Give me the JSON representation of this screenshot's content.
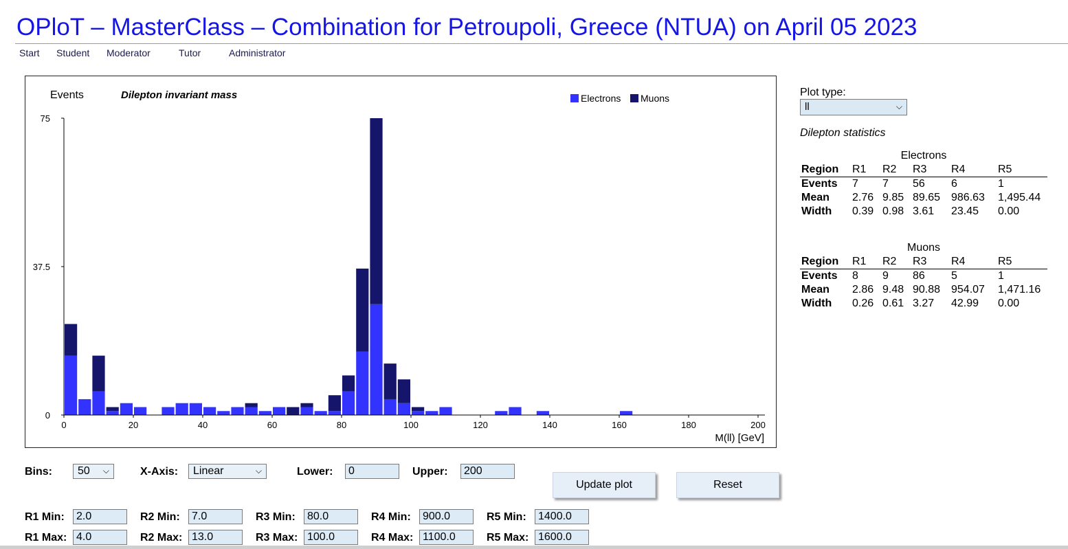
{
  "header": {
    "title": "OPloT – MasterClass – Combination for Petroupoli, Greece (NTUA) on April 05 2023",
    "nav": [
      "Start",
      "Student",
      "Moderator",
      "Tutor",
      "Administrator"
    ]
  },
  "chart_data": {
    "type": "bar",
    "stacked": true,
    "title": "Dilepton invariant mass",
    "ylabel": "Events",
    "xlabel": "M(ll) [GeV]",
    "xlim": [
      0,
      200
    ],
    "ylim": [
      0,
      75
    ],
    "xticks": [
      0,
      20,
      40,
      60,
      80,
      100,
      120,
      140,
      160,
      180,
      200
    ],
    "yticks": [
      0,
      37.5,
      75
    ],
    "bin_width": 4,
    "bin_starts": [
      0,
      4,
      8,
      12,
      16,
      20,
      24,
      28,
      32,
      36,
      40,
      44,
      48,
      52,
      56,
      60,
      64,
      68,
      72,
      76,
      80,
      84,
      88,
      92,
      96,
      100,
      104,
      108,
      112,
      116,
      120,
      124,
      128,
      132,
      136,
      140,
      144,
      148,
      152,
      156,
      160,
      164,
      168,
      172,
      176,
      180,
      184,
      188,
      192,
      196
    ],
    "legend": {
      "position": "top-right"
    },
    "series": [
      {
        "name": "Electrons",
        "color": "#3333ff",
        "values": [
          15,
          4,
          6,
          1,
          3,
          2,
          0,
          2,
          3,
          3,
          2,
          1,
          2,
          2,
          1,
          2,
          0,
          2,
          1,
          1,
          6,
          16,
          28,
          4,
          3,
          1,
          1,
          2,
          0,
          0,
          0,
          1,
          2,
          0,
          1,
          0,
          0,
          0,
          0,
          0,
          1,
          0,
          0,
          0,
          0,
          0,
          0,
          0,
          0,
          0
        ]
      },
      {
        "name": "Muons",
        "color": "#15156b",
        "values": [
          8,
          0,
          9,
          1,
          0,
          0,
          0,
          0,
          0,
          0,
          0,
          0,
          0,
          1,
          0,
          0,
          2,
          1,
          0,
          4,
          4,
          21,
          47,
          9,
          6,
          1,
          0,
          0,
          0,
          0,
          0,
          0,
          0,
          0,
          0,
          0,
          0,
          0,
          0,
          0,
          0,
          0,
          0,
          0,
          0,
          0,
          0,
          0,
          0,
          0
        ]
      }
    ]
  },
  "side": {
    "plot_type_label": "Plot type:",
    "plot_type_value": "ll",
    "stats_title": "Dilepton statistics",
    "tables": [
      {
        "caption": "Electrons",
        "header": [
          "Region",
          "R1",
          "R2",
          "R3",
          "R4",
          "R5"
        ],
        "rows": [
          [
            "Events",
            "7",
            "7",
            "56",
            "6",
            "1"
          ],
          [
            "Mean",
            "2.76",
            "9.85",
            "89.65",
            "986.63",
            "1,495.44"
          ],
          [
            "Width",
            "0.39",
            "0.98",
            "3.61",
            "23.45",
            "0.00"
          ]
        ]
      },
      {
        "caption": "Muons",
        "header": [
          "Region",
          "R1",
          "R2",
          "R3",
          "R4",
          "R5"
        ],
        "rows": [
          [
            "Events",
            "8",
            "9",
            "86",
            "5",
            "1"
          ],
          [
            "Mean",
            "2.86",
            "9.48",
            "90.88",
            "954.07",
            "1,471.16"
          ],
          [
            "Width",
            "0.26",
            "0.61",
            "3.27",
            "42.99",
            "0.00"
          ]
        ]
      }
    ]
  },
  "controls": {
    "bins_label": "Bins:",
    "bins_value": "50",
    "xaxis_label": "X-Axis:",
    "xaxis_value": "Linear",
    "lower_label": "Lower:",
    "lower_value": "0",
    "upper_label": "Upper:",
    "upper_value": "200",
    "update_button": "Update plot",
    "reset_button": "Reset",
    "ranges": [
      {
        "min_label": "R1 Min:",
        "min": "2.0",
        "max_label": "R1 Max:",
        "max": "4.0"
      },
      {
        "min_label": "R2 Min:",
        "min": "7.0",
        "max_label": "R2 Max:",
        "max": "13.0"
      },
      {
        "min_label": "R3 Min:",
        "min": "80.0",
        "max_label": "R3 Max:",
        "max": "100.0"
      },
      {
        "min_label": "R4 Min:",
        "min": "900.0",
        "max_label": "R4 Max:",
        "max": "1100.0"
      },
      {
        "min_label": "R5 Min:",
        "min": "1400.0",
        "max_label": "R5 Max:",
        "max": "1600.0"
      }
    ]
  }
}
